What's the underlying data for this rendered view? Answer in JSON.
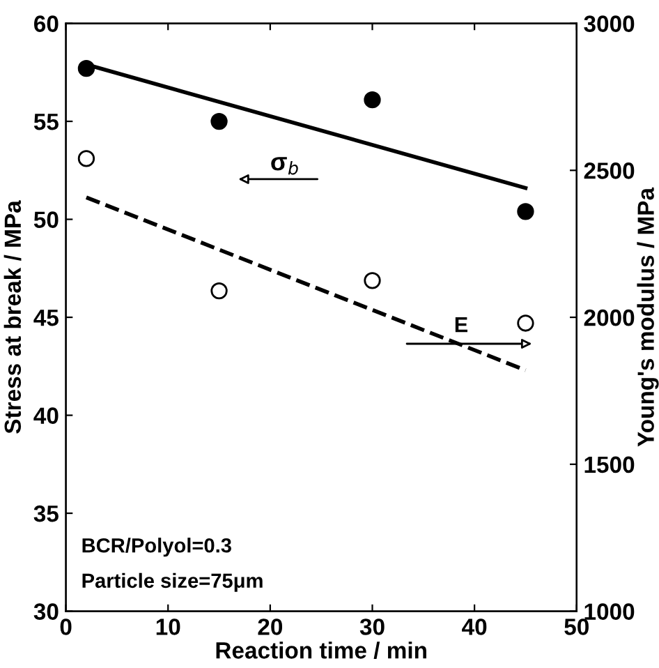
{
  "chart_data": {
    "type": "scatter",
    "xlabel": "Reaction time / min",
    "ylabel": "Stress at break / MPa",
    "y2label": "Young's modulus / MPa",
    "xlim": [
      0,
      50
    ],
    "xticks": [
      0,
      10,
      20,
      30,
      40,
      50
    ],
    "ylim": [
      30,
      60
    ],
    "yticks": [
      30,
      35,
      40,
      45,
      50,
      55,
      60
    ],
    "y2lim": [
      1000,
      3000
    ],
    "y2ticks": [
      1000,
      1500,
      2000,
      2500,
      3000
    ],
    "series": [
      {
        "color": "#000000",
        "marker": "circle",
        "x": [
          2,
          15,
          30,
          45
        ],
        "values": [
          57.7,
          55.0,
          56.1,
          50.4
        ]
      },
      {
        "color": "#000000",
        "marker": "circle",
        "axis": "y2",
        "x": [
          2,
          15,
          30,
          45
        ],
        "values": [
          2540,
          2090,
          2125,
          1980
        ]
      },
      {
        "type": "line",
        "color": "#000000",
        "line_style": "solid",
        "marker": "none",
        "x": [
          2,
          45
        ],
        "values": [
          57.9,
          51.6
        ]
      },
      {
        "type": "line",
        "color": "#000000",
        "line_style": "dashed",
        "marker": "none",
        "axis": "y2",
        "x": [
          2,
          45
        ],
        "values": [
          2408,
          1820
        ]
      }
    ],
    "annotations": [
      "σ$_{b}$",
      "E",
      "BCR/Polyol=0.3",
      "Particle size=75μm"
    ],
    "grid": false,
    "legend": false
  }
}
